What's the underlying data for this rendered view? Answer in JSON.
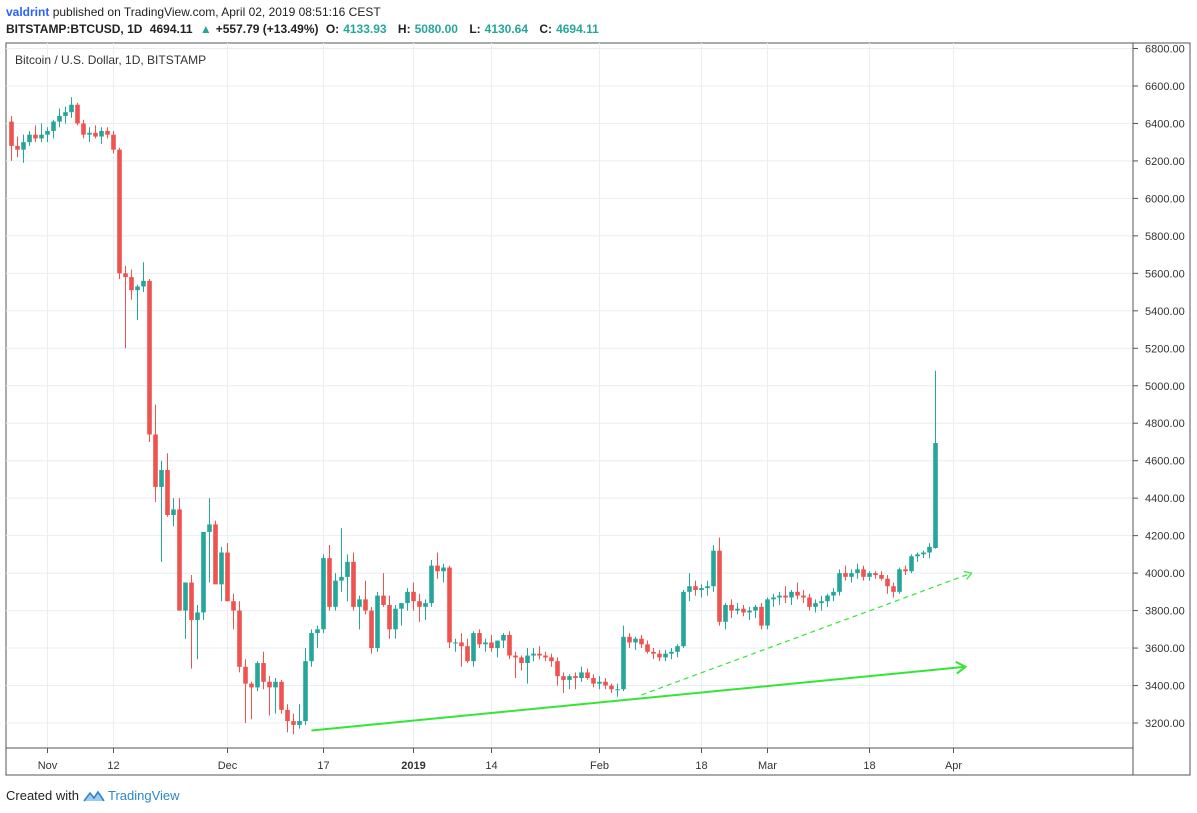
{
  "header": {
    "publisher": "valdrint",
    "published_text": "published on TradingView.com, April 02, 2019 08:51:16 CEST",
    "symbol": "BITSTAMP:BTCUSD, 1D",
    "last": "4694.11",
    "change": "+557.79 (+13.49%)",
    "o_label": "O:",
    "o_value": "4133.93",
    "h_label": "H:",
    "h_value": "5080.00",
    "l_label": "L:",
    "l_value": "4130.64",
    "c_label": "C:",
    "c_value": "4694.11"
  },
  "footer": {
    "created_with": "Created with",
    "brand": "TradingView"
  },
  "colors": {
    "up": "#26a69a",
    "down": "#ef5350",
    "trend": "#33e633",
    "grid": "#e8eef3"
  },
  "chart_data": {
    "type": "candlestick",
    "title": "Bitcoin / U.S. Dollar, 1D, BITSTAMP",
    "ylim": [
      3100,
      6850
    ],
    "yticks": [
      3200,
      3400,
      3600,
      3800,
      4000,
      4200,
      4400,
      4600,
      4800,
      5000,
      5200,
      5400,
      5600,
      5800,
      6000,
      6200,
      6400,
      6600,
      6800
    ],
    "ytick_labels": [
      "3200.00",
      "3400.00",
      "3600.00",
      "3800.00",
      "4000.00",
      "4200.00",
      "4400.00",
      "4600.00",
      "4800.00",
      "5000.00",
      "5200.00",
      "5400.00",
      "5600.00",
      "5800.00",
      "6000.00",
      "6200.00",
      "6400.00",
      "6600.00",
      "6800.00"
    ],
    "start_date": "2018-10-26",
    "xticks": [
      {
        "label": "Nov",
        "date": "2018-11-01",
        "bold": false
      },
      {
        "label": "12",
        "date": "2018-11-12",
        "bold": false
      },
      {
        "label": "Dec",
        "date": "2018-12-01",
        "bold": false
      },
      {
        "label": "17",
        "date": "2018-12-17",
        "bold": false
      },
      {
        "label": "2019",
        "date": "2019-01-01",
        "bold": true
      },
      {
        "label": "14",
        "date": "2019-01-14",
        "bold": false
      },
      {
        "label": "Feb",
        "date": "2019-02-01",
        "bold": false
      },
      {
        "label": "18",
        "date": "2019-02-18",
        "bold": false
      },
      {
        "label": "Mar",
        "date": "2019-03-01",
        "bold": false
      },
      {
        "label": "18",
        "date": "2019-03-18",
        "bold": false
      },
      {
        "label": "Apr",
        "date": "2019-04-01",
        "bold": false
      }
    ],
    "candles": [
      [
        6410,
        6440,
        6200,
        6280
      ],
      [
        6280,
        6330,
        6220,
        6260
      ],
      [
        6260,
        6340,
        6190,
        6300
      ],
      [
        6300,
        6360,
        6280,
        6340
      ],
      [
        6340,
        6390,
        6300,
        6320
      ],
      [
        6320,
        6400,
        6300,
        6340
      ],
      [
        6340,
        6380,
        6300,
        6360
      ],
      [
        6360,
        6420,
        6320,
        6410
      ],
      [
        6410,
        6480,
        6380,
        6440
      ],
      [
        6440,
        6490,
        6400,
        6460
      ],
      [
        6460,
        6540,
        6430,
        6500
      ],
      [
        6500,
        6510,
        6390,
        6400
      ],
      [
        6400,
        6420,
        6320,
        6340
      ],
      [
        6340,
        6380,
        6300,
        6350
      ],
      [
        6350,
        6390,
        6320,
        6330
      ],
      [
        6330,
        6380,
        6290,
        6360
      ],
      [
        6360,
        6380,
        6320,
        6340
      ],
      [
        6340,
        6360,
        6240,
        6260
      ],
      [
        6260,
        6270,
        5570,
        5600
      ],
      [
        5600,
        5640,
        5200,
        5580
      ],
      [
        5580,
        5620,
        5460,
        5510
      ],
      [
        5510,
        5540,
        5350,
        5530
      ],
      [
        5530,
        5660,
        5500,
        5560
      ],
      [
        5560,
        5570,
        4700,
        4740
      ],
      [
        4740,
        4900,
        4380,
        4460
      ],
      [
        4460,
        4600,
        4060,
        4550
      ],
      [
        4550,
        4640,
        4300,
        4310
      ],
      [
        4310,
        4400,
        4250,
        4340
      ],
      [
        4340,
        4400,
        3800,
        3800
      ],
      [
        3800,
        3920,
        3650,
        3950
      ],
      [
        3950,
        3990,
        3490,
        3750
      ],
      [
        3750,
        3830,
        3540,
        3790
      ],
      [
        3790,
        4200,
        3750,
        4220
      ],
      [
        4220,
        4400,
        3950,
        4260
      ],
      [
        4260,
        4280,
        3950,
        3940
      ],
      [
        3940,
        4140,
        3850,
        4110
      ],
      [
        4110,
        4160,
        3850,
        3850
      ],
      [
        3850,
        3890,
        3700,
        3800
      ],
      [
        3800,
        3850,
        3470,
        3500
      ],
      [
        3500,
        3540,
        3200,
        3410
      ],
      [
        3410,
        3420,
        3220,
        3390
      ],
      [
        3390,
        3530,
        3370,
        3520
      ],
      [
        3520,
        3580,
        3380,
        3420
      ],
      [
        3420,
        3450,
        3240,
        3390
      ],
      [
        3390,
        3440,
        3250,
        3420
      ],
      [
        3420,
        3430,
        3250,
        3270
      ],
      [
        3270,
        3300,
        3150,
        3210
      ],
      [
        3210,
        3250,
        3140,
        3190
      ],
      [
        3190,
        3300,
        3170,
        3210
      ],
      [
        3210,
        3600,
        3190,
        3530
      ],
      [
        3530,
        3700,
        3500,
        3680
      ],
      [
        3680,
        3720,
        3600,
        3700
      ],
      [
        3700,
        4100,
        3680,
        4080
      ],
      [
        4080,
        4150,
        3800,
        3820
      ],
      [
        3820,
        4000,
        3800,
        3960
      ],
      [
        3960,
        4240,
        3900,
        3980
      ],
      [
        3980,
        4100,
        3850,
        4060
      ],
      [
        4060,
        4110,
        3800,
        3820
      ],
      [
        3820,
        3880,
        3700,
        3860
      ],
      [
        3860,
        3960,
        3780,
        3800
      ],
      [
        3800,
        3820,
        3570,
        3600
      ],
      [
        3600,
        3900,
        3580,
        3880
      ],
      [
        3880,
        4000,
        3820,
        3830
      ],
      [
        3830,
        3880,
        3650,
        3700
      ],
      [
        3700,
        3830,
        3650,
        3810
      ],
      [
        3810,
        3840,
        3720,
        3840
      ],
      [
        3840,
        3920,
        3800,
        3900
      ],
      [
        3900,
        3950,
        3800,
        3850
      ],
      [
        3850,
        3890,
        3740,
        3820
      ],
      [
        3820,
        3860,
        3750,
        3840
      ],
      [
        3840,
        4070,
        3820,
        4040
      ],
      [
        4040,
        4110,
        3970,
        4010
      ],
      [
        4010,
        4050,
        3950,
        4030
      ],
      [
        4030,
        4040,
        3600,
        3630
      ],
      [
        3630,
        3650,
        3580,
        3630
      ],
      [
        3630,
        3680,
        3500,
        3610
      ],
      [
        3610,
        3650,
        3520,
        3530
      ],
      [
        3530,
        3690,
        3500,
        3680
      ],
      [
        3680,
        3700,
        3600,
        3620
      ],
      [
        3620,
        3650,
        3580,
        3630
      ],
      [
        3630,
        3670,
        3580,
        3600
      ],
      [
        3600,
        3640,
        3550,
        3640
      ],
      [
        3640,
        3680,
        3600,
        3670
      ],
      [
        3670,
        3690,
        3540,
        3560
      ],
      [
        3560,
        3580,
        3440,
        3550
      ],
      [
        3550,
        3560,
        3480,
        3520
      ],
      [
        3520,
        3600,
        3410,
        3560
      ],
      [
        3560,
        3600,
        3530,
        3570
      ],
      [
        3570,
        3610,
        3540,
        3560
      ],
      [
        3560,
        3580,
        3530,
        3550
      ],
      [
        3550,
        3570,
        3500,
        3530
      ],
      [
        3530,
        3550,
        3400,
        3450
      ],
      [
        3450,
        3470,
        3360,
        3430
      ],
      [
        3430,
        3460,
        3380,
        3450
      ],
      [
        3450,
        3470,
        3380,
        3440
      ],
      [
        3440,
        3500,
        3420,
        3470
      ],
      [
        3470,
        3490,
        3430,
        3440
      ],
      [
        3440,
        3460,
        3390,
        3410
      ],
      [
        3410,
        3450,
        3380,
        3420
      ],
      [
        3420,
        3440,
        3380,
        3400
      ],
      [
        3400,
        3410,
        3360,
        3380
      ],
      [
        3380,
        3410,
        3340,
        3380
      ],
      [
        3380,
        3720,
        3370,
        3660
      ],
      [
        3660,
        3680,
        3600,
        3630
      ],
      [
        3630,
        3660,
        3590,
        3650
      ],
      [
        3650,
        3670,
        3600,
        3620
      ],
      [
        3620,
        3640,
        3570,
        3580
      ],
      [
        3580,
        3600,
        3540,
        3570
      ],
      [
        3570,
        3590,
        3530,
        3550
      ],
      [
        3550,
        3590,
        3530,
        3570
      ],
      [
        3570,
        3600,
        3540,
        3580
      ],
      [
        3580,
        3620,
        3550,
        3610
      ],
      [
        3610,
        3910,
        3600,
        3900
      ],
      [
        3900,
        4000,
        3850,
        3930
      ],
      [
        3930,
        3960,
        3880,
        3910
      ],
      [
        3910,
        3940,
        3870,
        3920
      ],
      [
        3920,
        3960,
        3880,
        3930
      ],
      [
        3930,
        4150,
        3900,
        4120
      ],
      [
        4120,
        4190,
        3720,
        3740
      ],
      [
        3740,
        3840,
        3700,
        3830
      ],
      [
        3830,
        3860,
        3760,
        3800
      ],
      [
        3800,
        3840,
        3780,
        3810
      ],
      [
        3810,
        3830,
        3770,
        3790
      ],
      [
        3790,
        3820,
        3750,
        3800
      ],
      [
        3800,
        3830,
        3760,
        3820
      ],
      [
        3820,
        3840,
        3700,
        3720
      ],
      [
        3720,
        3870,
        3700,
        3860
      ],
      [
        3860,
        3890,
        3820,
        3870
      ],
      [
        3870,
        3900,
        3830,
        3880
      ],
      [
        3880,
        3930,
        3840,
        3870
      ],
      [
        3870,
        3910,
        3830,
        3900
      ],
      [
        3900,
        3950,
        3860,
        3880
      ],
      [
        3880,
        3910,
        3840,
        3870
      ],
      [
        3870,
        3890,
        3800,
        3820
      ],
      [
        3820,
        3860,
        3790,
        3840
      ],
      [
        3840,
        3880,
        3800,
        3850
      ],
      [
        3850,
        3890,
        3820,
        3880
      ],
      [
        3880,
        3920,
        3850,
        3900
      ],
      [
        3900,
        4020,
        3880,
        4000
      ],
      [
        4000,
        4040,
        3960,
        3980
      ],
      [
        3980,
        4020,
        3950,
        4000
      ],
      [
        4000,
        4050,
        3970,
        4020
      ],
      [
        4020,
        4040,
        3960,
        3980
      ],
      [
        3980,
        4010,
        3960,
        4000
      ],
      [
        4000,
        4010,
        3970,
        3990
      ],
      [
        3990,
        4010,
        3960,
        3970
      ],
      [
        3970,
        3990,
        3890,
        3930
      ],
      [
        3930,
        3950,
        3870,
        3900
      ],
      [
        3900,
        4030,
        3890,
        4020
      ],
      [
        4020,
        4040,
        3990,
        4010
      ],
      [
        4010,
        4100,
        4000,
        4090
      ],
      [
        4090,
        4110,
        4060,
        4100
      ],
      [
        4100,
        4120,
        4080,
        4110
      ],
      [
        4110,
        4160,
        4080,
        4140
      ],
      [
        4133.93,
        5080,
        4130.64,
        4694.11
      ]
    ],
    "trendlines": [
      {
        "style": "solid",
        "arrow": true,
        "from": [
          "2018-12-15",
          3160
        ],
        "to": [
          "2019-04-03",
          3500
        ]
      },
      {
        "style": "dashed",
        "arrow": true,
        "from": [
          "2019-02-08",
          3350
        ],
        "to": [
          "2019-04-04",
          4000
        ]
      }
    ]
  }
}
